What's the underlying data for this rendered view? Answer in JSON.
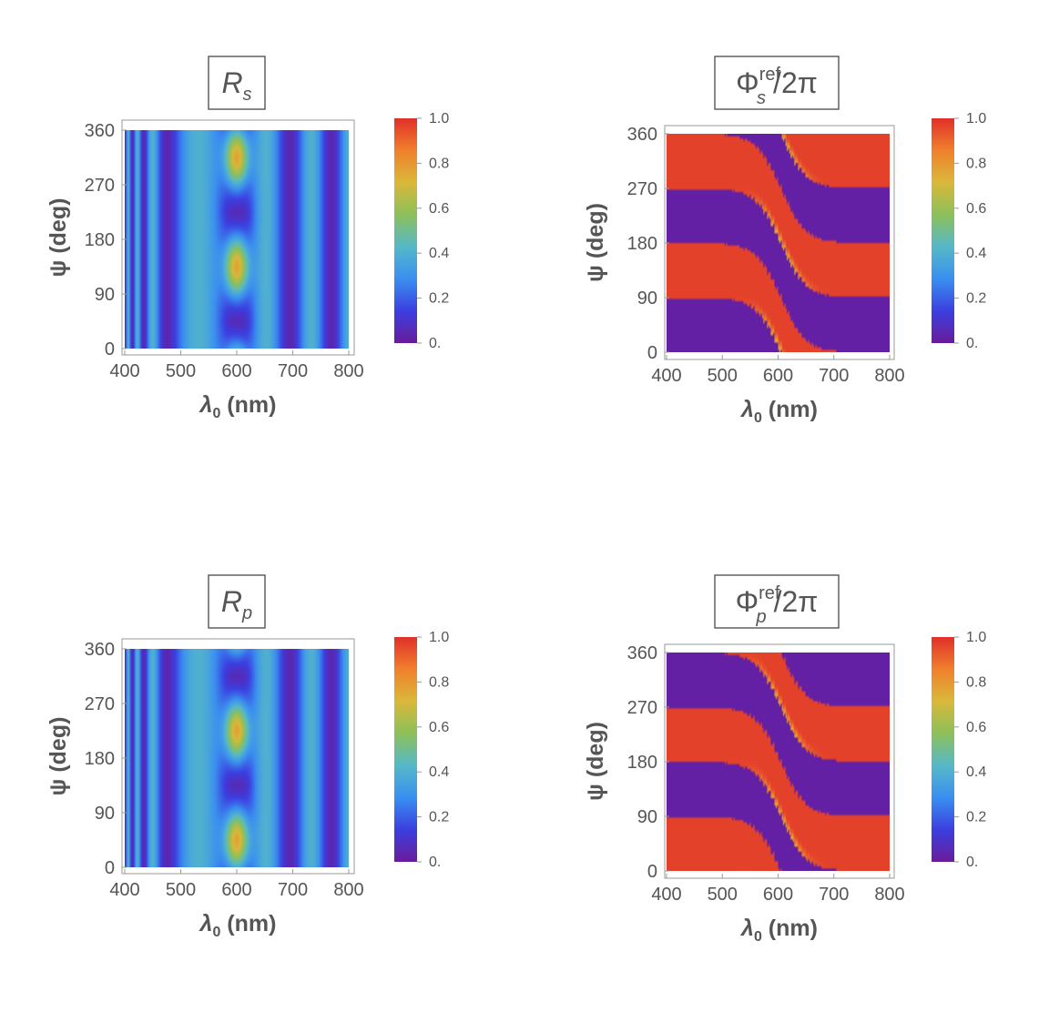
{
  "chart_data": [
    {
      "id": "Rs",
      "type": "heatmap",
      "title": {
        "base": "R",
        "sub": "s",
        "sup": "",
        "rest": ""
      },
      "xlabel": {
        "base": "λ",
        "sub": "0",
        "rest": " (nm)"
      },
      "ylabel": "ψ (deg)",
      "xlim": [
        400,
        800
      ],
      "ylim": [
        0,
        360
      ],
      "xticks": [
        "400",
        "500",
        "600",
        "700",
        "800"
      ],
      "yticks": [
        "0",
        "90",
        "180",
        "270",
        "360"
      ],
      "colorbar": {
        "range": [
          0,
          1
        ],
        "ticks": [
          "0.",
          "0.2",
          "0.4",
          "0.6",
          "0.8",
          "1.0"
        ]
      },
      "colormap": [
        "#6a1b9a",
        "#3b3fe0",
        "#3a8ff0",
        "#56b8c8",
        "#8cc05a",
        "#d9b83a",
        "#f0802c",
        "#e0302a"
      ],
      "features": {
        "kind": "reflectance",
        "fringe_contrast": 0.35,
        "peak_center_nm": 600,
        "peak_width_nm": 22,
        "peak_value": 0.75,
        "peak_psi_deg": [
          135,
          315
        ]
      }
    },
    {
      "id": "Phis",
      "type": "heatmap",
      "title": {
        "base": "Φ",
        "sub": "s",
        "sup": "ref",
        "rest": "/2π"
      },
      "xlabel": {
        "base": "λ",
        "sub": "0",
        "rest": " (nm)"
      },
      "ylabel": "ψ (deg)",
      "xlim": [
        400,
        800
      ],
      "ylim": [
        0,
        360
      ],
      "xticks": [
        "400",
        "500",
        "600",
        "700",
        "800"
      ],
      "yticks": [
        "0",
        "90",
        "180",
        "270",
        "360"
      ],
      "colorbar": {
        "range": [
          0,
          1
        ],
        "ticks": [
          "0.",
          "0.2",
          "0.4",
          "0.6",
          "0.8",
          "1.0"
        ]
      },
      "colormap": [
        "#6a1b9a",
        "#3b3fe0",
        "#3a8ff0",
        "#56b8c8",
        "#8cc05a",
        "#d9b83a",
        "#f0802c",
        "#e0302a"
      ],
      "features": {
        "kind": "phase",
        "phase_offset": 0.5,
        "shift_center_nm": 605,
        "shift_width_nm": 22
      }
    },
    {
      "id": "Rp",
      "type": "heatmap",
      "title": {
        "base": "R",
        "sub": "p",
        "sup": "",
        "rest": ""
      },
      "xlabel": {
        "base": "λ",
        "sub": "0",
        "rest": " (nm)"
      },
      "ylabel": "ψ (deg)",
      "xlim": [
        400,
        800
      ],
      "ylim": [
        0,
        360
      ],
      "xticks": [
        "400",
        "500",
        "600",
        "700",
        "800"
      ],
      "yticks": [
        "0",
        "90",
        "180",
        "270",
        "360"
      ],
      "colorbar": {
        "range": [
          0,
          1
        ],
        "ticks": [
          "0.",
          "0.2",
          "0.4",
          "0.6",
          "0.8",
          "1.0"
        ]
      },
      "colormap": [
        "#6a1b9a",
        "#3b3fe0",
        "#3a8ff0",
        "#56b8c8",
        "#8cc05a",
        "#d9b83a",
        "#f0802c",
        "#e0302a"
      ],
      "features": {
        "kind": "reflectance",
        "fringe_contrast": 0.35,
        "peak_center_nm": 600,
        "peak_width_nm": 22,
        "peak_value": 0.75,
        "peak_psi_deg": [
          45,
          225
        ]
      }
    },
    {
      "id": "Phip",
      "type": "heatmap",
      "title": {
        "base": "Φ",
        "sub": "p",
        "sup": "ref",
        "rest": "/2π"
      },
      "xlabel": {
        "base": "λ",
        "sub": "0",
        "rest": " (nm)"
      },
      "ylabel": "ψ (deg)",
      "xlim": [
        400,
        800
      ],
      "ylim": [
        0,
        360
      ],
      "xticks": [
        "400",
        "500",
        "600",
        "700",
        "800"
      ],
      "yticks": [
        "0",
        "90",
        "180",
        "270",
        "360"
      ],
      "colorbar": {
        "range": [
          0,
          1
        ],
        "ticks": [
          "0.",
          "0.2",
          "0.4",
          "0.6",
          "0.8",
          "1.0"
        ]
      },
      "colormap": [
        "#6a1b9a",
        "#3b3fe0",
        "#3a8ff0",
        "#56b8c8",
        "#8cc05a",
        "#d9b83a",
        "#f0802c",
        "#e0302a"
      ],
      "features": {
        "kind": "phase",
        "phase_offset": 0.0,
        "shift_center_nm": 605,
        "shift_width_nm": 22
      }
    }
  ]
}
